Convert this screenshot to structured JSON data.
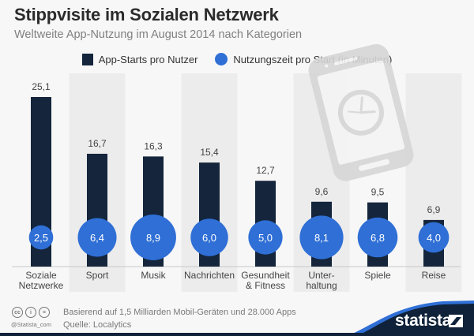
{
  "header": {
    "title": "Stippvisite im Sozialen Netzwerk",
    "subtitle": "Weltweite App-Nutzung im August 2014 nach Kategorien"
  },
  "legend": {
    "bars_label": "App-Starts pro Nutzer",
    "bubbles_label": "Nutzungszeit pro Start (in Minuten)"
  },
  "colors": {
    "bar": "#14253c",
    "bubble": "#2f6fd6",
    "band": "#ececec",
    "brand_dark": "#0f2239",
    "brand_accent": "#2f6fd6"
  },
  "chart_data": {
    "type": "bar",
    "title": "Stippvisite im Sozialen Netzwerk",
    "subtitle": "Weltweite App-Nutzung im August 2014 nach Kategorien",
    "xlabel": "",
    "ylabel": "",
    "categories": [
      "Soziale Netzwerke",
      "Sport",
      "Musik",
      "Nachrichten",
      "Gesundheit & Fitness",
      "Unter-haltung",
      "Spiele",
      "Reise"
    ],
    "category_lines": [
      [
        "Soziale",
        "Netzwerke"
      ],
      [
        "Sport"
      ],
      [
        "Musik"
      ],
      [
        "Nachrichten"
      ],
      [
        "Gesundheit",
        "& Fitness"
      ],
      [
        "Unter-",
        "haltung"
      ],
      [
        "Spiele"
      ],
      [
        "Reise"
      ]
    ],
    "series": [
      {
        "name": "App-Starts pro Nutzer",
        "kind": "bar",
        "values": [
          25.1,
          16.7,
          16.3,
          15.4,
          12.7,
          9.6,
          9.5,
          6.9
        ],
        "labels": [
          "25,1",
          "16,7",
          "16,3",
          "15,4",
          "12,7",
          "9,6",
          "9,5",
          "6,9"
        ]
      },
      {
        "name": "Nutzungszeit pro Start (in Minuten)",
        "kind": "bubble",
        "values": [
          2.5,
          6.4,
          8.9,
          6.0,
          5.0,
          8.1,
          6.8,
          4.0
        ],
        "labels": [
          "2,5",
          "6,4",
          "8,9",
          "6,0",
          "5,0",
          "8,1",
          "6,8",
          "4,0"
        ]
      }
    ],
    "ylim": [
      0,
      25.1
    ],
    "grid": false,
    "legend_position": "top-center"
  },
  "footer": {
    "note": "Basierend auf 1,5 Milliarden Mobil-Geräten und 28.000 Apps",
    "source": "Quelle: Localytics",
    "handle": "@Statista_com",
    "brand": "statista",
    "license_icons": [
      "cc",
      "by",
      "nd"
    ]
  }
}
